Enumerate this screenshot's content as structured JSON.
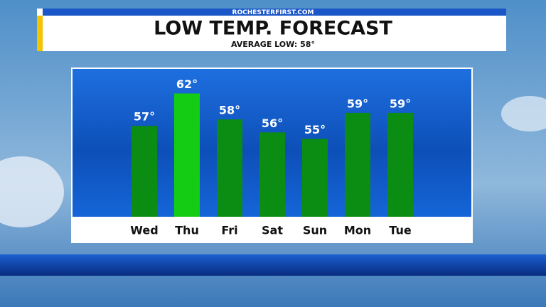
{
  "source": "ROCHESTERFIRST.COM",
  "chart_data": {
    "type": "bar",
    "title": "LOW TEMP. FORECAST",
    "subtitle": "AVERAGE LOW: 58°",
    "categories": [
      "Wed",
      "Thu",
      "Fri",
      "Sat",
      "Sun",
      "Mon",
      "Tue"
    ],
    "values": [
      57,
      62,
      58,
      56,
      55,
      59,
      59
    ],
    "value_labels": [
      "57°",
      "62°",
      "58°",
      "56°",
      "55°",
      "59°",
      "59°"
    ],
    "colors": [
      "#0b8c12",
      "#14cc14",
      "#0b8c12",
      "#0b8c12",
      "#0b8c12",
      "#0b8c12",
      "#0b8c12"
    ],
    "ylim": [
      43,
      66
    ]
  }
}
